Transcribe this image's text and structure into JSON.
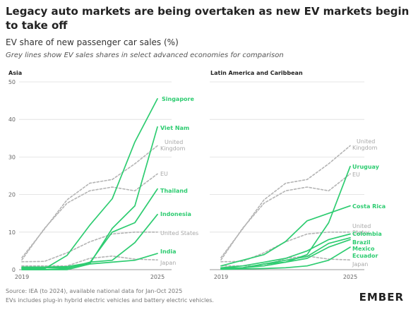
{
  "header": {
    "title": "Legacy auto markets are being overtaken as new EV markets begin to take off",
    "subtitle": "EV share of new passenger car sales (%)",
    "note": "Grey lines show EV sales shares in select advanced economies for comparison"
  },
  "footer": {
    "source": "Source: IEA (to 2024), available national data for Jan-Oct 2025",
    "note": "EVs includes plug-in hybrid electric vehicles and battery electric vehicles.",
    "logo": "EMBER"
  },
  "colors": {
    "green": "#2ecc71",
    "grey": "#b4b4b4",
    "grid": "#dedede"
  },
  "chart_data": [
    {
      "type": "line",
      "title": "Asia",
      "x": [
        2019,
        2020,
        2021,
        2022,
        2023,
        2024,
        2025
      ],
      "x_tick_labels": [
        "2019",
        "2025"
      ],
      "ylim": [
        0,
        50
      ],
      "y_ticks": [
        0,
        10,
        20,
        30,
        40,
        50
      ],
      "grid": true,
      "series": [
        {
          "name": "Singapore",
          "group": "highlight",
          "values": [
            0.3,
            0.2,
            3.8,
            11.8,
            18.9,
            34,
            45.5
          ]
        },
        {
          "name": "Viet Nam",
          "group": "highlight",
          "values": [
            0,
            0,
            0,
            1.5,
            11,
            17,
            38
          ]
        },
        {
          "name": "Thailand",
          "group": "highlight",
          "values": [
            0.7,
            0.7,
            0.8,
            1.8,
            10,
            12.5,
            21.5
          ]
        },
        {
          "name": "Indonesia",
          "group": "highlight",
          "values": [
            0,
            0,
            0.3,
            2,
            2.5,
            7.2,
            14.7
          ]
        },
        {
          "name": "India",
          "group": "highlight",
          "values": [
            0.5,
            0.5,
            0.5,
            1.5,
            2,
            2.5,
            4.3
          ]
        },
        {
          "name": "United Kingdom",
          "group": "comparison",
          "values": [
            3.2,
            10.8,
            18.6,
            23,
            24,
            28.2,
            33
          ]
        },
        {
          "name": "EU",
          "group": "comparison",
          "values": [
            2.6,
            11,
            17.7,
            21,
            22,
            21,
            25.5
          ]
        },
        {
          "name": "United States",
          "group": "comparison",
          "values": [
            2.1,
            2.2,
            4.5,
            7.4,
            9.5,
            10,
            10
          ]
        },
        {
          "name": "Japan",
          "group": "comparison",
          "values": [
            1,
            1,
            1,
            3,
            3.6,
            2.8,
            2.6
          ]
        }
      ]
    },
    {
      "type": "line",
      "title": "Latin America and Caribbean",
      "x": [
        2019,
        2020,
        2021,
        2022,
        2023,
        2024,
        2025
      ],
      "x_tick_labels": [
        "2019",
        "2025"
      ],
      "ylim": [
        0,
        50
      ],
      "y_ticks": [
        0,
        10,
        20,
        30,
        40,
        50
      ],
      "grid": true,
      "series": [
        {
          "name": "Uruguay",
          "group": "highlight",
          "values": [
            0.5,
            0.5,
            1,
            2,
            4,
            12.5,
            27.5
          ]
        },
        {
          "name": "Costa Rica",
          "group": "highlight",
          "values": [
            1,
            2.5,
            4,
            7.5,
            13,
            15,
            17
          ]
        },
        {
          "name": "Colombia",
          "group": "highlight",
          "values": [
            0.5,
            1,
            2,
            3,
            5,
            8,
            9.5
          ]
        },
        {
          "name": "Brazil",
          "group": "highlight",
          "values": [
            0.3,
            0.5,
            1.5,
            2.5,
            3.5,
            7,
            8.5
          ]
        },
        {
          "name": "Mexico",
          "group": "highlight",
          "values": [
            0.2,
            0.4,
            1.5,
            2,
            3,
            6,
            8
          ]
        },
        {
          "name": "Ecuador",
          "group": "highlight",
          "values": [
            0.1,
            0.2,
            0.3,
            0.5,
            1,
            2.5,
            6
          ]
        },
        {
          "name": "United Kingdom",
          "group": "comparison",
          "values": [
            3.2,
            10.8,
            18.6,
            23,
            24,
            28.2,
            33
          ]
        },
        {
          "name": "EU",
          "group": "comparison",
          "values": [
            2.6,
            11,
            17.7,
            21,
            22,
            21,
            25.5
          ]
        },
        {
          "name": "United States",
          "group": "comparison",
          "values": [
            2.1,
            2.2,
            4.5,
            7.4,
            9.5,
            10,
            10
          ]
        },
        {
          "name": "Japan",
          "group": "comparison",
          "values": [
            1,
            1,
            1,
            3,
            3.6,
            2.8,
            2.6
          ]
        }
      ]
    }
  ],
  "labels": {
    "asia": {
      "singapore": "Singapore",
      "vietnam": "Viet Nam",
      "uk_line1": "United",
      "uk_line2": "Kingdom",
      "eu": "EU",
      "thailand": "Thailand",
      "indonesia": "Indonesia",
      "us": "United States",
      "india": "India",
      "japan": "Japan"
    },
    "latam": {
      "uk_line1": "United",
      "uk_line2": "Kingdom",
      "uruguay": "Uruguay",
      "eu": "EU",
      "costa_rica": "Costa Rica",
      "us_line1": "United",
      "us_line2": "States",
      "colombia": "Colombia",
      "brazil": "Brazil",
      "mexico": "Mexico",
      "ecuador": "Ecuador",
      "japan": "Japan"
    }
  }
}
